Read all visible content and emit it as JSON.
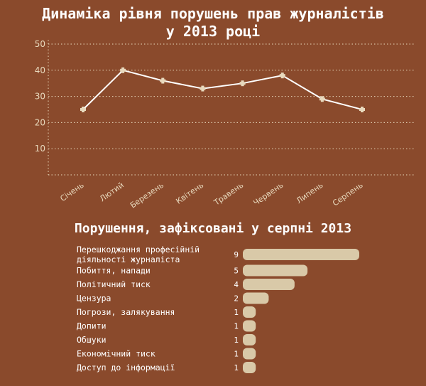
{
  "colors": {
    "background": "#8a4a2c",
    "line": "#ffffff",
    "marker": "#e8d9bd",
    "bar": "#d9c9a8",
    "grid": "#e8d9bd"
  },
  "chart_data": [
    {
      "type": "line",
      "title": "Динаміка рівня порушень прав журналістів\nу 2013 році",
      "title_lines": [
        "Динаміка рівня порушень прав журналістів",
        "у 2013 році"
      ],
      "categories": [
        "Січень",
        "Лютий",
        "Березень",
        "Квітень",
        "Травень",
        "Червень",
        "Липень",
        "Серпень"
      ],
      "values": [
        25,
        40,
        36,
        33,
        35,
        38,
        29,
        25
      ],
      "y_ticks": [
        10,
        20,
        30,
        40,
        50
      ],
      "ylim": [
        0,
        50
      ],
      "grid": true,
      "grid_style": "dotted"
    },
    {
      "type": "bar",
      "orientation": "horizontal",
      "title": "Порушення, зафіксовані у серпні 2013",
      "categories": [
        [
          "Перешкоджання професійній",
          "діяльності журналіста"
        ],
        [
          "Побиття, напади"
        ],
        [
          "Політичний тиск"
        ],
        [
          "Цензура"
        ],
        [
          "Погрози, залякування"
        ],
        [
          "Допити"
        ],
        [
          "Обшуки"
        ],
        [
          "Економічний тиск"
        ],
        [
          "Доступ до інформації"
        ]
      ],
      "values": [
        9,
        5,
        4,
        2,
        1,
        1,
        1,
        1,
        1
      ],
      "xlim": [
        0,
        9
      ]
    }
  ]
}
